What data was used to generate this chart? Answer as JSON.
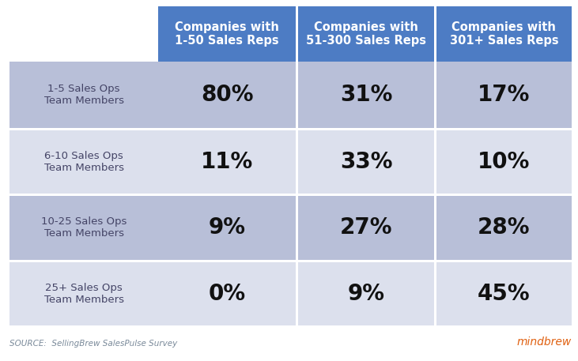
{
  "col_headers": [
    "Companies with\n1-50 Sales Reps",
    "Companies with\n51-300 Sales Reps",
    "Companies with\n301+ Sales Reps"
  ],
  "row_headers": [
    "1-5 Sales Ops\nTeam Members",
    "6-10 Sales Ops\nTeam Members",
    "10-25 Sales Ops\nTeam Members",
    "25+ Sales Ops\nTeam Members"
  ],
  "values": [
    [
      "80%",
      "31%",
      "17%"
    ],
    [
      "11%",
      "33%",
      "10%"
    ],
    [
      "9%",
      "27%",
      "28%"
    ],
    [
      "0%",
      "9%",
      "45%"
    ]
  ],
  "header_bg": "#4d7cc4",
  "header_text": "#ffffff",
  "row_bg_dark": "#b8bfd8",
  "row_bg_light": "#dce0ed",
  "row_header_dark": "#b8bfd8",
  "row_header_light": "#dce0ed",
  "cell_text": "#111111",
  "row_header_text": "#444466",
  "source_text": "SOURCE:  SellingBrew SalesPulse Survey",
  "source_color": "#7a8a9a",
  "mindbrew_text": "mindbrew",
  "mindbrew_color": "#e06010",
  "bg_color": "#ffffff",
  "header_fontsize": 10.5,
  "value_fontsize": 20,
  "row_header_fontsize": 9.5,
  "source_fontsize": 7.5,
  "mindbrew_fontsize": 10
}
